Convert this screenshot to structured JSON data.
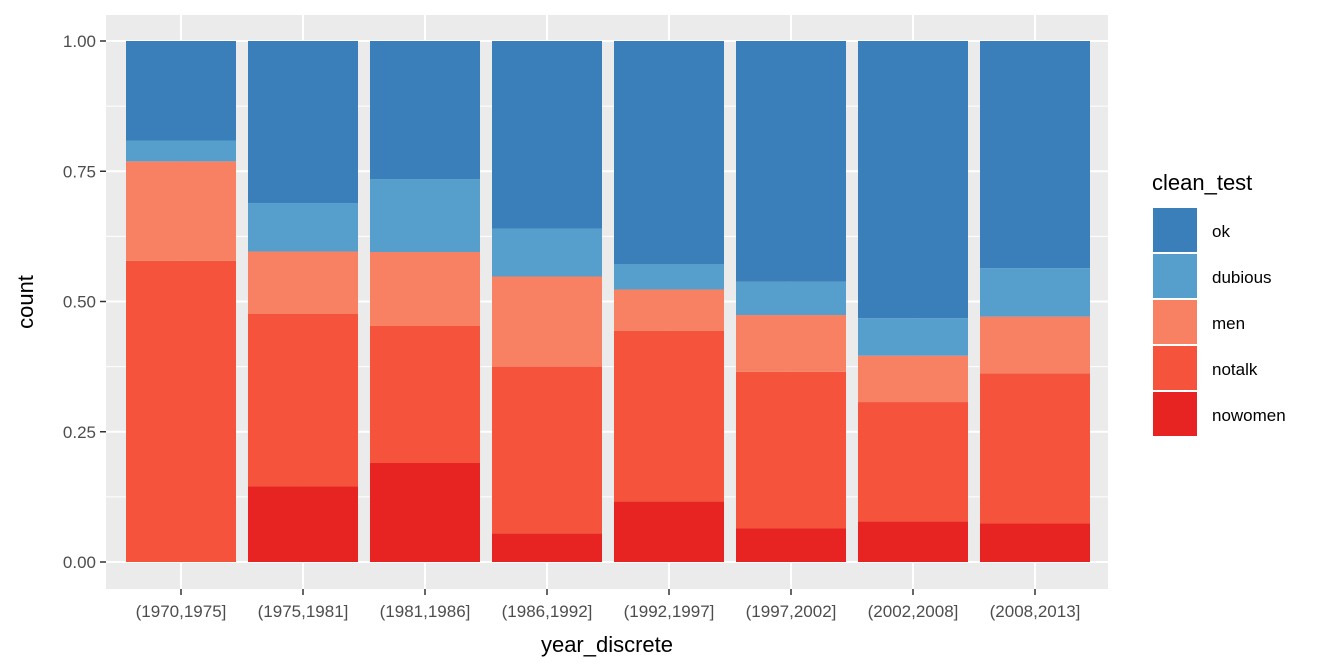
{
  "chart_data": {
    "type": "bar",
    "stacked": true,
    "position": "fill",
    "categories": [
      "(1970,1975]",
      "(1975,1981]",
      "(1981,1986]",
      "(1986,1992]",
      "(1992,1997]",
      "(1997,2002]",
      "(2002,2008]",
      "(2008,2013]"
    ],
    "series": [
      {
        "name": "nowomen",
        "color": "#E72422",
        "values": [
          0.0,
          0.145,
          0.19,
          0.055,
          0.116,
          0.065,
          0.078,
          0.074
        ]
      },
      {
        "name": "notalk",
        "color": "#F5533C",
        "values": [
          0.578,
          0.331,
          0.263,
          0.32,
          0.328,
          0.3,
          0.229,
          0.288
        ]
      },
      {
        "name": "men",
        "color": "#F88163",
        "values": [
          0.191,
          0.12,
          0.142,
          0.173,
          0.079,
          0.109,
          0.089,
          0.109
        ]
      },
      {
        "name": "dubious",
        "color": "#569FCD",
        "values": [
          0.04,
          0.093,
          0.14,
          0.092,
          0.049,
          0.064,
          0.072,
          0.093
        ]
      },
      {
        "name": "ok",
        "color": "#3A7FBA",
        "values": [
          0.191,
          0.311,
          0.265,
          0.36,
          0.428,
          0.462,
          0.532,
          0.436
        ]
      }
    ],
    "xlabel": "year_discrete",
    "ylabel": "count",
    "ylim": [
      0,
      1
    ],
    "yticks": [
      "0.00",
      "0.25",
      "0.50",
      "0.75",
      "1.00"
    ],
    "ytick_values": [
      0,
      0.25,
      0.5,
      0.75,
      1
    ],
    "legend": {
      "title": "clean_test",
      "placement": "right",
      "order": [
        "ok",
        "dubious",
        "men",
        "notalk",
        "nowomen"
      ]
    },
    "grid": true,
    "panel_background": "#EBEBEB"
  }
}
